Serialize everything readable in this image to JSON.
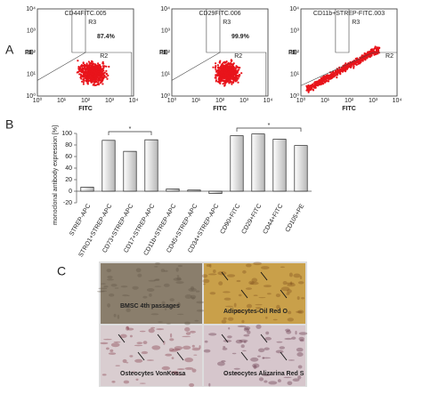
{
  "panel_labels": [
    "A",
    "B",
    "C"
  ],
  "flow_ticks": [
    "10⁰",
    "10¹",
    "10²",
    "10³",
    "10⁴"
  ],
  "flow_plots": [
    {
      "title": "CD44FITC.005",
      "gates": [
        "R3",
        "R2"
      ],
      "percent": "87.4%",
      "y_label": "PE",
      "x_label": "FITC"
    },
    {
      "title": "CD29FITC.006",
      "gates": [
        "R3",
        "R2"
      ],
      "percent": "99.9%",
      "y_label": "PE",
      "x_label": "FITC"
    },
    {
      "title": "CD11b+STREP-FITC.003",
      "gates": [
        "R3",
        "R2"
      ],
      "y_label": "PE",
      "x_label": "FITC"
    }
  ],
  "chart_data": {
    "type": "bar",
    "y_label": "monoclonal antibody expression [%]",
    "categories": [
      "STREP-APC",
      "STRO1+STREP-APC",
      "CD73+STREP-APC",
      "CD17+STREP-APC",
      "CD11b+STREP-APC",
      "CD45+STREP-APC",
      "CD34+STREP-APC",
      "CD90+FITC",
      "CD29+FITC",
      "CD44+FITC",
      "CD105+PE"
    ],
    "values": [
      7,
      88,
      69,
      89,
      4,
      2,
      -4,
      96,
      99,
      90,
      79
    ],
    "color": "#ffffff",
    "ylim": [
      -20,
      100
    ],
    "yticks": [
      -20,
      0,
      20,
      40,
      60,
      80,
      100
    ],
    "annotations": [
      "*",
      "*"
    ]
  },
  "images": [
    {
      "caption": "BMSC 4th passages"
    },
    {
      "caption": "Adipocytes-Oil Red O"
    },
    {
      "caption": "Osteocytes VonKossa"
    },
    {
      "caption": "Osteocytes Alizarina Red S"
    }
  ]
}
